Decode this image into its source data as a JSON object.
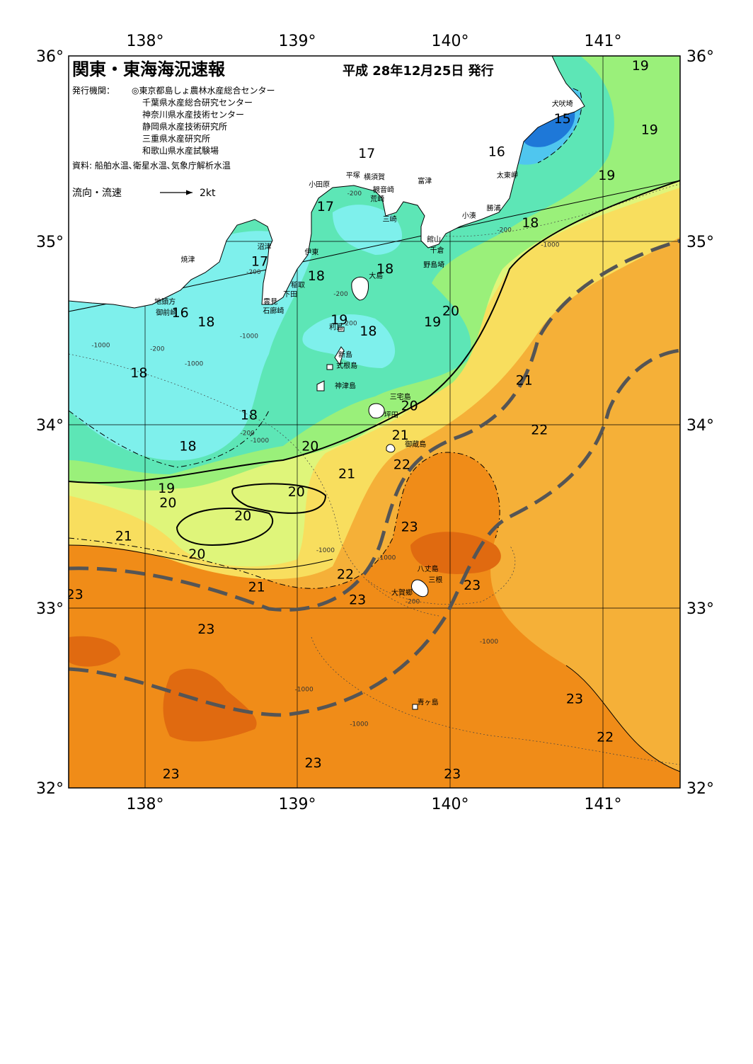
{
  "header": {
    "title": "関東・東海海況速報",
    "date": "平成 28年12月25日 発行"
  },
  "info": {
    "issuer_label": "発行機関：",
    "issuers": [
      "◎東京都島しょ農林水産総合センター",
      "千葉県水産総合研究センター",
      "神奈川県水産技術センター",
      "静岡県水産技術研究所",
      "三重県水産研究所",
      "和歌山県水産試験場"
    ],
    "source": "資料: 船舶水温､衛星水温､気象庁解析水温"
  },
  "legend": {
    "label": "流向・流速",
    "scale": "2kt"
  },
  "axes": {
    "lon_top": [
      "138°",
      "139°",
      "140°",
      "141°"
    ],
    "lon_bottom": [
      "138°",
      "139°",
      "140°",
      "141°"
    ],
    "lat_left": [
      "36°",
      "35°",
      "34°",
      "33°",
      "32°"
    ],
    "lat_right": [
      "36°",
      "35°",
      "34°",
      "33°",
      "32°"
    ]
  },
  "colors": {
    "t15": "#1e78d8",
    "t16": "#4fc6ef",
    "t17": "#7ef0ec",
    "t18": "#5de6b6",
    "t19": "#9af07a",
    "t20": "#dff57a",
    "t21": "#f8de5e",
    "t22": "#f5b038",
    "t23": "#f08c18",
    "t24": "#e06a10",
    "land": "#ffffff",
    "current": "#555555"
  },
  "isotherm_labels": [
    {
      "text": "19",
      "lon": 141.24,
      "lat": 35.95
    },
    {
      "text": "15",
      "lon": 140.73,
      "lat": 35.66
    },
    {
      "text": "19",
      "lon": 141.3,
      "lat": 35.6
    },
    {
      "text": "17",
      "lon": 139.45,
      "lat": 35.47
    },
    {
      "text": "16",
      "lon": 140.3,
      "lat": 35.48
    },
    {
      "text": "19",
      "lon": 141.02,
      "lat": 35.35
    },
    {
      "text": "17",
      "lon": 139.18,
      "lat": 35.18
    },
    {
      "text": "18",
      "lon": 140.52,
      "lat": 35.09
    },
    {
      "text": "17",
      "lon": 138.75,
      "lat": 34.88
    },
    {
      "text": "18",
      "lon": 139.57,
      "lat": 34.84
    },
    {
      "text": "18",
      "lon": 139.12,
      "lat": 34.8
    },
    {
      "text": "16",
      "lon": 138.23,
      "lat": 34.6
    },
    {
      "text": "18",
      "lon": 138.4,
      "lat": 34.55
    },
    {
      "text": "19",
      "lon": 139.27,
      "lat": 34.56
    },
    {
      "text": "20",
      "lon": 140.0,
      "lat": 34.61
    },
    {
      "text": "19",
      "lon": 139.88,
      "lat": 34.55
    },
    {
      "text": "18",
      "lon": 139.46,
      "lat": 34.5
    },
    {
      "text": "18",
      "lon": 137.96,
      "lat": 34.27
    },
    {
      "text": "21",
      "lon": 140.48,
      "lat": 34.23
    },
    {
      "text": "20",
      "lon": 139.73,
      "lat": 34.09
    },
    {
      "text": "18",
      "lon": 138.68,
      "lat": 34.04
    },
    {
      "text": "22",
      "lon": 140.58,
      "lat": 33.96
    },
    {
      "text": "21",
      "lon": 139.67,
      "lat": 33.93
    },
    {
      "text": "18",
      "lon": 138.28,
      "lat": 33.87
    },
    {
      "text": "20",
      "lon": 139.08,
      "lat": 33.87
    },
    {
      "text": "22",
      "lon": 139.68,
      "lat": 33.77
    },
    {
      "text": "21",
      "lon": 139.32,
      "lat": 33.72
    },
    {
      "text": "19",
      "lon": 138.14,
      "lat": 33.64
    },
    {
      "text": "20",
      "lon": 138.99,
      "lat": 33.62
    },
    {
      "text": "20",
      "lon": 138.15,
      "lat": 33.56
    },
    {
      "text": "20",
      "lon": 138.64,
      "lat": 33.49
    },
    {
      "text": "23",
      "lon": 139.73,
      "lat": 33.43
    },
    {
      "text": "21",
      "lon": 137.86,
      "lat": 33.38
    },
    {
      "text": "20",
      "lon": 138.34,
      "lat": 33.28
    },
    {
      "text": "22",
      "lon": 139.31,
      "lat": 33.17
    },
    {
      "text": "21",
      "lon": 138.73,
      "lat": 33.1
    },
    {
      "text": "23",
      "lon": 140.14,
      "lat": 33.11
    },
    {
      "text": "23",
      "lon": 137.54,
      "lat": 33.06
    },
    {
      "text": "23",
      "lon": 139.39,
      "lat": 33.03
    },
    {
      "text": "23",
      "lon": 138.4,
      "lat": 32.87
    },
    {
      "text": "23",
      "lon": 140.81,
      "lat": 32.49
    },
    {
      "text": "22",
      "lon": 141.01,
      "lat": 32.28
    },
    {
      "text": "23",
      "lon": 139.1,
      "lat": 32.14
    },
    {
      "text": "23",
      "lon": 138.17,
      "lat": 32.08
    },
    {
      "text": "23",
      "lon": 140.01,
      "lat": 32.08
    }
  ],
  "place_labels": [
    {
      "text": "犬吠埼",
      "lon": 140.73,
      "lat": 35.74
    },
    {
      "text": "平塚",
      "lon": 139.36,
      "lat": 35.35
    },
    {
      "text": "横須賀",
      "lon": 139.5,
      "lat": 35.34
    },
    {
      "text": "富津",
      "lon": 139.83,
      "lat": 35.32
    },
    {
      "text": "太東岬",
      "lon": 140.37,
      "lat": 35.35
    },
    {
      "text": "小田原",
      "lon": 139.14,
      "lat": 35.3
    },
    {
      "text": "観音崎",
      "lon": 139.56,
      "lat": 35.27
    },
    {
      "text": "荒崎",
      "lon": 139.52,
      "lat": 35.22
    },
    {
      "text": "勝浦",
      "lon": 140.28,
      "lat": 35.17
    },
    {
      "text": "小湊",
      "lon": 140.12,
      "lat": 35.13
    },
    {
      "text": "三崎",
      "lon": 139.6,
      "lat": 35.11
    },
    {
      "text": "館山",
      "lon": 139.89,
      "lat": 35.0
    },
    {
      "text": "沼津",
      "lon": 138.78,
      "lat": 34.96
    },
    {
      "text": "千倉",
      "lon": 139.91,
      "lat": 34.94
    },
    {
      "text": "伊東",
      "lon": 139.09,
      "lat": 34.93
    },
    {
      "text": "焼津",
      "lon": 138.28,
      "lat": 34.89
    },
    {
      "text": "野島埼",
      "lon": 139.89,
      "lat": 34.86
    },
    {
      "text": "大島",
      "lon": 139.51,
      "lat": 34.8
    },
    {
      "text": "稲取",
      "lon": 139.0,
      "lat": 34.75
    },
    {
      "text": "下田",
      "lon": 138.95,
      "lat": 34.7
    },
    {
      "text": "地頭方",
      "lon": 138.13,
      "lat": 34.66
    },
    {
      "text": "雲見",
      "lon": 138.82,
      "lat": 34.66
    },
    {
      "text": "石廊崎",
      "lon": 138.84,
      "lat": 34.61
    },
    {
      "text": "御前崎",
      "lon": 138.14,
      "lat": 34.6
    },
    {
      "text": "利島",
      "lon": 139.25,
      "lat": 34.52
    },
    {
      "text": "新島",
      "lon": 139.31,
      "lat": 34.37
    },
    {
      "text": "式根島",
      "lon": 139.32,
      "lat": 34.31
    },
    {
      "text": "神津島",
      "lon": 139.31,
      "lat": 34.2
    },
    {
      "text": "三宅島",
      "lon": 139.67,
      "lat": 34.14
    },
    {
      "text": "坪田",
      "lon": 139.61,
      "lat": 34.04
    },
    {
      "text": "御蔵島",
      "lon": 139.77,
      "lat": 33.88
    },
    {
      "text": "八丈島",
      "lon": 139.85,
      "lat": 33.2
    },
    {
      "text": "三根",
      "lon": 139.9,
      "lat": 33.14
    },
    {
      "text": "大賀郷",
      "lon": 139.68,
      "lat": 33.07
    },
    {
      "text": "青ヶ島",
      "lon": 139.85,
      "lat": 32.47
    }
  ],
  "depth_labels": [
    {
      "text": "-200",
      "lon": 139.37,
      "lat": 35.25
    },
    {
      "text": "-200",
      "lon": 140.35,
      "lat": 35.05
    },
    {
      "text": "-1000",
      "lon": 140.65,
      "lat": 34.97
    },
    {
      "text": "-200",
      "lon": 138.71,
      "lat": 34.82
    },
    {
      "text": "-200",
      "lon": 139.28,
      "lat": 34.7
    },
    {
      "text": "-1000",
      "lon": 138.68,
      "lat": 34.47
    },
    {
      "text": "-1000",
      "lon": 137.71,
      "lat": 34.42
    },
    {
      "text": "-200",
      "lon": 138.08,
      "lat": 34.4
    },
    {
      "text": "-1000",
      "lon": 138.32,
      "lat": 34.32
    },
    {
      "text": "-200",
      "lon": 139.34,
      "lat": 34.54
    },
    {
      "text": "-1000",
      "lon": 138.75,
      "lat": 33.9
    },
    {
      "text": "-200",
      "lon": 138.67,
      "lat": 33.94
    },
    {
      "text": "-1000",
      "lon": 139.18,
      "lat": 33.3
    },
    {
      "text": "-1000",
      "lon": 139.58,
      "lat": 33.26
    },
    {
      "text": "-200",
      "lon": 139.75,
      "lat": 33.02
    },
    {
      "text": "-1000",
      "lon": 140.25,
      "lat": 32.8
    },
    {
      "text": "-1000",
      "lon": 139.04,
      "lat": 32.54
    },
    {
      "text": "-1000",
      "lon": 139.4,
      "lat": 32.35
    }
  ]
}
